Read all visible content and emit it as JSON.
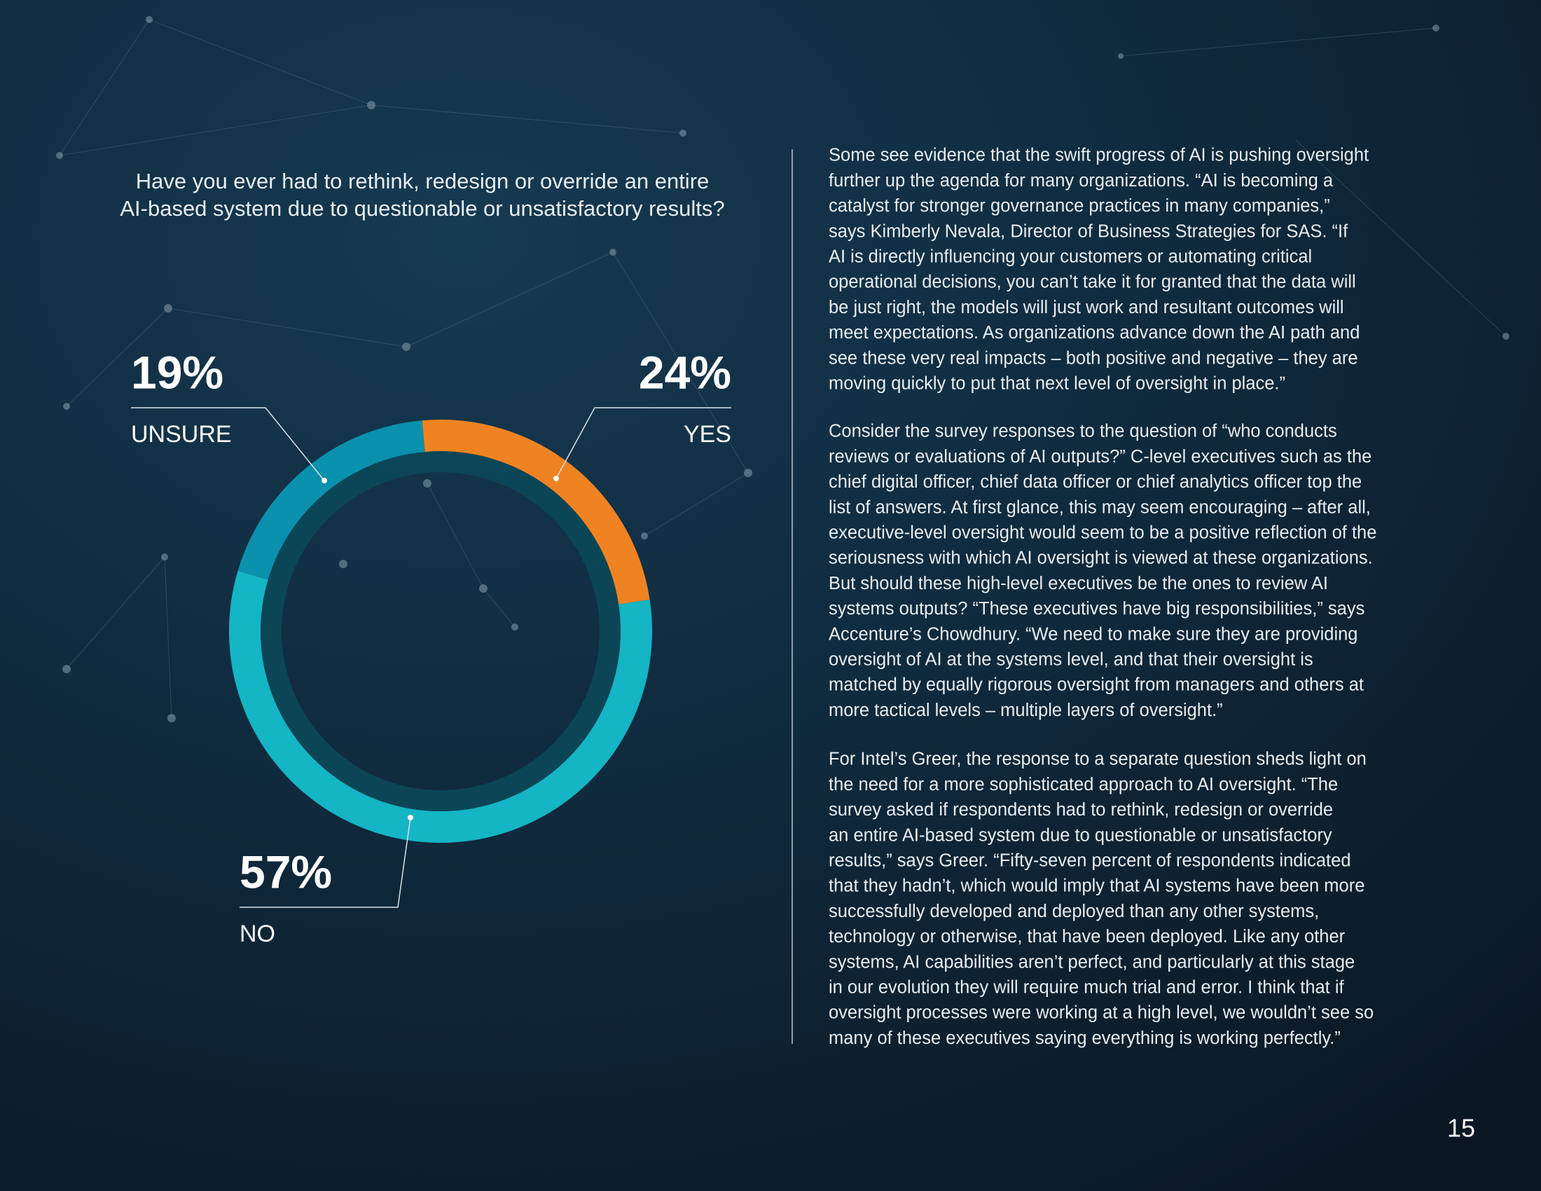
{
  "chart_data": {
    "type": "pie",
    "title_lines": [
      "Have you ever had to rethink, redesign or override an entire",
      "AI-based system due to questionable or unsatisfactory results?"
    ],
    "categories": [
      "YES",
      "NO",
      "UNSURE"
    ],
    "values": [
      24,
      57,
      19
    ],
    "value_labels": [
      "24%",
      "57%",
      "19%"
    ],
    "colors": [
      "#f08321",
      "#14b5c4",
      "#0a91ae"
    ],
    "donut": true
  },
  "body": {
    "paragraphs": [
      [
        "Some see evidence that the swift progress of AI is pushing oversight",
        "further up the agenda for many organizations. “AI is becoming a",
        "catalyst for stronger governance practices in many companies,”",
        "says Kimberly Nevala, Director of Business Strategies for SAS.  “If",
        "AI is directly influencing your customers or automating critical",
        "operational decisions, you can’t take it for granted that the data will",
        "be just right, the models will just work and resultant outcomes will",
        "meet expectations. As organizations advance down the AI path and",
        "see these very real impacts – both positive and negative – they are",
        "moving quickly to put that next level of oversight in place.”"
      ],
      [
        "Consider the survey responses to the question of “who conducts",
        "reviews or evaluations of AI outputs?” C-level executives such as the",
        "chief digital officer, chief data officer or chief analytics officer top the",
        "list of answers. At first glance, this may seem encouraging – after all,",
        "executive-level oversight would seem to be a positive reflection of the",
        "seriousness with which AI oversight is viewed at these organizations.",
        "But should these high-level executives be the ones to review AI",
        "systems outputs? “These executives have big responsibilities,” says",
        "Accenture’s Chowdhury. “We need to make sure they are providing",
        "oversight of AI at the systems level, and that their oversight is",
        "matched by equally rigorous oversight from managers and others at",
        "more tactical levels – multiple layers of oversight.”"
      ],
      [
        "For Intel’s Greer, the response to a separate question sheds light on",
        "the need for a more sophisticated approach to AI oversight. “The",
        "survey asked if respondents had to rethink, redesign or override",
        "an entire AI-based system due to questionable or unsatisfactory",
        "results,” says Greer. “Fifty-seven percent of respondents indicated",
        "that they hadn’t, which would imply that AI systems have been more",
        "successfully developed and deployed than any other systems,",
        "technology or otherwise, that have been deployed. Like any other",
        "systems, AI capabilities aren’t perfect, and particularly at this stage",
        "in our evolution they will require much trial and error. I think that if",
        "oversight processes were working at a high level, we wouldn’t see so",
        "many of these executives saying everything is working perfectly.”"
      ]
    ]
  },
  "page_number": "15"
}
